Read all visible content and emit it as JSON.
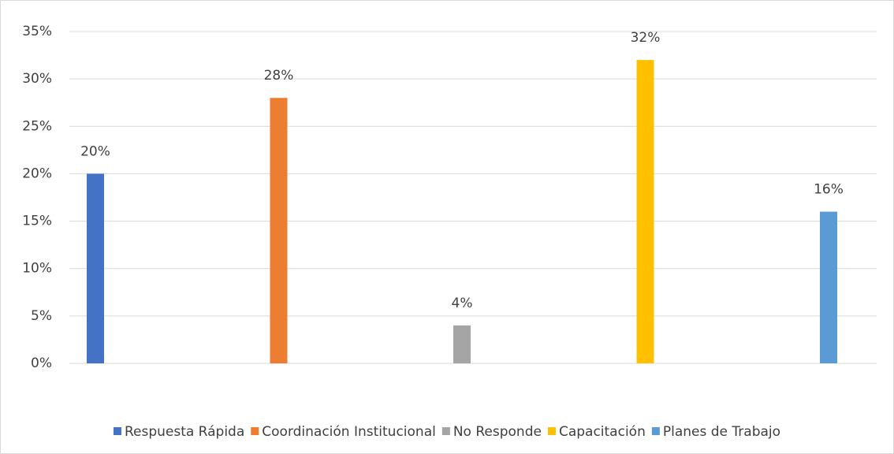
{
  "chart_data": {
    "type": "bar",
    "series": [
      {
        "name": "Respuesta Rápida",
        "color": "#4472c4",
        "values": [
          20
        ],
        "value_labels": [
          "20%"
        ]
      },
      {
        "name": "Coordinación Institucional",
        "color": "#ed7d31",
        "values": [
          28
        ],
        "value_labels": [
          "28%"
        ]
      },
      {
        "name": "No Responde",
        "color": "#a5a5a5",
        "values": [
          4
        ],
        "value_labels": [
          "4%"
        ]
      },
      {
        "name": "Capacitación",
        "color": "#ffc000",
        "values": [
          32
        ],
        "value_labels": [
          "32%"
        ]
      },
      {
        "name": "Planes de Trabajo",
        "color": "#5b9bd5",
        "values": [
          16
        ],
        "value_labels": [
          "16%"
        ]
      }
    ],
    "ylim": [
      0,
      35
    ],
    "yticks": [
      {
        "value": 0,
        "label": "0%"
      },
      {
        "value": 5,
        "label": "5%"
      },
      {
        "value": 10,
        "label": "10%"
      },
      {
        "value": 15,
        "label": "15%"
      },
      {
        "value": 20,
        "label": "20%"
      },
      {
        "value": 25,
        "label": "25%"
      },
      {
        "value": 30,
        "label": "30%"
      },
      {
        "value": 35,
        "label": "35%"
      }
    ],
    "grid": true,
    "legend": "bottom"
  }
}
